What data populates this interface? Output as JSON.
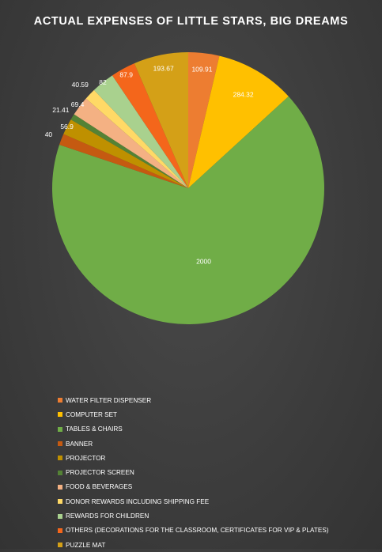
{
  "chart_data": {
    "type": "pie",
    "title": "ACTUAL EXPENSES OF LITTLE STARS, BIG DREAMS",
    "categories": [
      "WATER FILTER DISPENSER",
      "COMPUTER SET",
      "TABLES & CHAIRS",
      "BANNER",
      "PROJECTOR",
      "PROJECTOR SCREEN",
      "FOOD & BEVERAGES",
      "DONOR REWARDS INCLUDING SHIPPING FEE",
      "REWARDS FOR CHILDREN",
      "OTHERS (DECORATIONS FOR THE CLASSROOM, CERTIFICATES FOR VIP & PLATES)",
      "PUZZLE MAT"
    ],
    "values": [
      109.91,
      284.32,
      2000,
      40,
      56.9,
      21.41,
      69.4,
      40.59,
      82,
      87.9,
      193.67
    ],
    "data_labels": [
      "109.91",
      "284.32",
      "2000",
      "40",
      "56.9",
      "21.41",
      "69.4",
      "40.59",
      "82",
      "87.9",
      "193.67"
    ],
    "colors": [
      "#ED7D31",
      "#FFC000",
      "#70AD47",
      "#C55A11",
      "#BF9000",
      "#548235",
      "#F4B183",
      "#FFD966",
      "#A9D18E",
      "#F4661B",
      "#D4A017"
    ],
    "legend_position": "bottom",
    "start_angle_deg": 0,
    "direction": "clockwise"
  }
}
